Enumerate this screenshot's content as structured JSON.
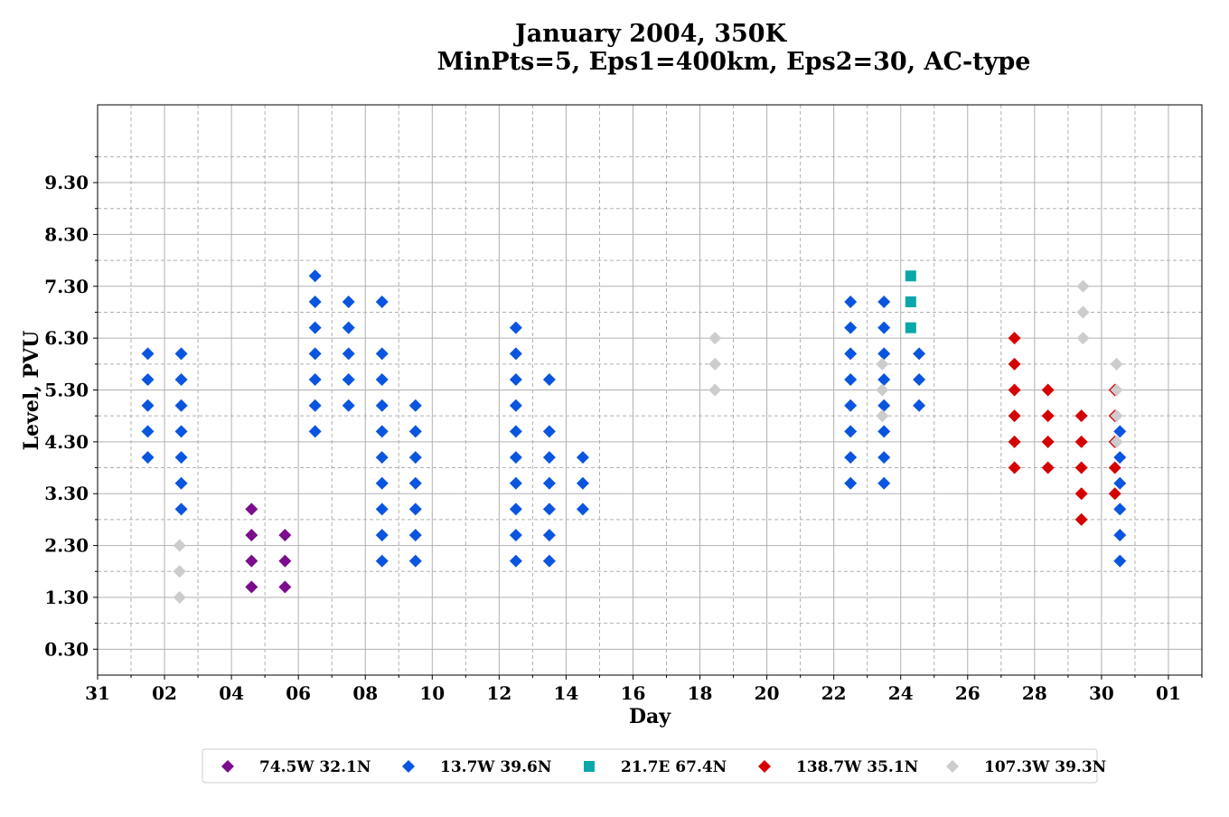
{
  "chart_data": {
    "type": "scatter",
    "title_line1": "January 2004, 350K",
    "title_line2": "MinPts=5, Eps1=400km, Eps2=30, AC-type",
    "xlabel": "Day",
    "ylabel": "Level, PVU",
    "x_tick_labels": [
      "31",
      "02",
      "04",
      "06",
      "08",
      "10",
      "12",
      "14",
      "16",
      "18",
      "20",
      "22",
      "24",
      "26",
      "28",
      "30",
      "01"
    ],
    "x_tick_days": [
      0,
      2,
      4,
      6,
      8,
      10,
      12,
      14,
      16,
      18,
      20,
      22,
      24,
      26,
      28,
      30,
      32
    ],
    "xlim": [
      0,
      33
    ],
    "y_tick_labels": [
      "0.30",
      "1.30",
      "2.30",
      "3.30",
      "4.30",
      "5.30",
      "6.30",
      "7.30",
      "8.30",
      "9.30"
    ],
    "y_tick_values": [
      0.3,
      1.3,
      2.3,
      3.3,
      4.3,
      5.3,
      6.3,
      7.3,
      8.3,
      9.3
    ],
    "y_minor_values": [
      0.8,
      1.8,
      2.8,
      3.8,
      4.8,
      5.8,
      6.8,
      7.8,
      8.8,
      9.8
    ],
    "ylim": [
      -0.2,
      10.8
    ],
    "grid": true,
    "legend_position": "bottom",
    "series": [
      {
        "name": "74.5W 32.1N",
        "color": "#7b0c8c",
        "marker": "diamond",
        "points": [
          [
            4.6,
            3.0
          ],
          [
            4.6,
            2.5
          ],
          [
            4.6,
            2.0
          ],
          [
            4.6,
            1.5
          ],
          [
            5.6,
            2.5
          ],
          [
            5.6,
            2.0
          ],
          [
            5.6,
            1.5
          ]
        ]
      },
      {
        "name": "13.7W 39.6N",
        "color": "#0a55e0",
        "marker": "diamond",
        "points": [
          [
            1.5,
            6.0
          ],
          [
            1.5,
            5.5
          ],
          [
            1.5,
            5.0
          ],
          [
            1.5,
            4.5
          ],
          [
            1.5,
            4.0
          ],
          [
            2.5,
            6.0
          ],
          [
            2.5,
            5.5
          ],
          [
            2.5,
            5.0
          ],
          [
            2.5,
            4.5
          ],
          [
            2.5,
            4.0
          ],
          [
            2.5,
            3.5
          ],
          [
            2.5,
            3.0
          ],
          [
            6.5,
            7.5
          ],
          [
            6.5,
            7.0
          ],
          [
            6.5,
            6.5
          ],
          [
            6.5,
            6.0
          ],
          [
            6.5,
            5.5
          ],
          [
            6.5,
            5.0
          ],
          [
            6.5,
            4.5
          ],
          [
            7.5,
            7.0
          ],
          [
            7.5,
            6.5
          ],
          [
            7.5,
            6.0
          ],
          [
            7.5,
            5.5
          ],
          [
            7.5,
            5.0
          ],
          [
            8.5,
            7.0
          ],
          [
            8.5,
            6.0
          ],
          [
            8.5,
            5.5
          ],
          [
            8.5,
            5.0
          ],
          [
            8.5,
            4.5
          ],
          [
            8.5,
            4.0
          ],
          [
            8.5,
            3.5
          ],
          [
            8.5,
            3.0
          ],
          [
            8.5,
            2.5
          ],
          [
            8.5,
            2.0
          ],
          [
            9.5,
            5.0
          ],
          [
            9.5,
            4.5
          ],
          [
            9.5,
            4.0
          ],
          [
            9.5,
            3.5
          ],
          [
            9.5,
            3.0
          ],
          [
            9.5,
            2.5
          ],
          [
            9.5,
            2.0
          ],
          [
            12.5,
            6.5
          ],
          [
            12.5,
            6.0
          ],
          [
            12.5,
            5.5
          ],
          [
            12.5,
            5.0
          ],
          [
            12.5,
            4.5
          ],
          [
            12.5,
            4.0
          ],
          [
            12.5,
            3.5
          ],
          [
            12.5,
            3.0
          ],
          [
            12.5,
            2.5
          ],
          [
            12.5,
            2.0
          ],
          [
            13.5,
            5.5
          ],
          [
            13.5,
            4.5
          ],
          [
            13.5,
            4.0
          ],
          [
            13.5,
            3.5
          ],
          [
            13.5,
            3.0
          ],
          [
            13.5,
            2.5
          ],
          [
            13.5,
            2.0
          ],
          [
            14.5,
            4.0
          ],
          [
            14.5,
            3.5
          ],
          [
            14.5,
            3.0
          ],
          [
            22.5,
            7.0
          ],
          [
            22.5,
            6.5
          ],
          [
            22.5,
            6.0
          ],
          [
            22.5,
            5.5
          ],
          [
            22.5,
            5.0
          ],
          [
            22.5,
            4.5
          ],
          [
            22.5,
            4.0
          ],
          [
            22.5,
            3.5
          ],
          [
            23.5,
            7.0
          ],
          [
            23.5,
            6.5
          ],
          [
            23.5,
            6.0
          ],
          [
            23.5,
            5.5
          ],
          [
            23.5,
            5.0
          ],
          [
            23.5,
            4.5
          ],
          [
            23.5,
            4.0
          ],
          [
            23.5,
            3.5
          ],
          [
            24.55,
            6.0
          ],
          [
            24.55,
            5.5
          ],
          [
            24.55,
            5.0
          ],
          [
            30.55,
            4.5
          ],
          [
            30.55,
            4.0
          ],
          [
            30.55,
            3.5
          ],
          [
            30.55,
            3.0
          ],
          [
            30.55,
            2.5
          ],
          [
            30.55,
            2.0
          ]
        ]
      },
      {
        "name": "21.7E 67.4N",
        "color": "#0aa8a8",
        "marker": "square",
        "points": [
          [
            24.3,
            7.5
          ],
          [
            24.3,
            7.0
          ],
          [
            24.3,
            6.5
          ]
        ]
      },
      {
        "name": "138.7W 35.1N",
        "color": "#d40000",
        "marker": "diamond",
        "points": [
          [
            27.4,
            6.3
          ],
          [
            27.4,
            5.8
          ],
          [
            27.4,
            5.3
          ],
          [
            27.4,
            4.8
          ],
          [
            27.4,
            4.3
          ],
          [
            27.4,
            3.8
          ],
          [
            28.4,
            5.3
          ],
          [
            28.4,
            4.8
          ],
          [
            28.4,
            4.3
          ],
          [
            28.4,
            3.8
          ],
          [
            29.4,
            4.8
          ],
          [
            29.4,
            4.3
          ],
          [
            29.4,
            3.8
          ],
          [
            29.4,
            3.3
          ],
          [
            29.4,
            2.8
          ],
          [
            30.4,
            5.3
          ],
          [
            30.4,
            4.8
          ],
          [
            30.4,
            4.3
          ],
          [
            30.4,
            3.8
          ],
          [
            30.4,
            3.3
          ]
        ]
      },
      {
        "name": "107.3W 39.3N",
        "color": "#cccccc",
        "marker": "diamond",
        "points": [
          [
            2.45,
            2.3
          ],
          [
            2.45,
            1.8
          ],
          [
            2.45,
            1.3
          ],
          [
            18.45,
            6.3
          ],
          [
            18.45,
            5.8
          ],
          [
            18.45,
            5.3
          ],
          [
            23.45,
            5.8
          ],
          [
            23.45,
            5.3
          ],
          [
            23.45,
            4.8
          ],
          [
            29.45,
            7.3
          ],
          [
            29.45,
            6.8
          ],
          [
            29.45,
            6.3
          ],
          [
            30.45,
            5.8
          ],
          [
            30.45,
            5.3
          ],
          [
            30.45,
            4.8
          ],
          [
            30.45,
            4.3
          ]
        ]
      }
    ]
  }
}
